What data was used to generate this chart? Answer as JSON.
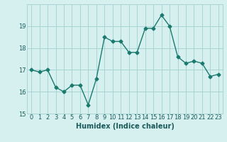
{
  "xlabel": "Humidex (Indice chaleur)",
  "ylabel": "",
  "x": [
    0,
    1,
    2,
    3,
    4,
    5,
    6,
    7,
    8,
    9,
    10,
    11,
    12,
    13,
    14,
    15,
    16,
    17,
    18,
    19,
    20,
    21,
    22,
    23
  ],
  "y": [
    17.0,
    16.9,
    17.0,
    16.2,
    16.0,
    16.3,
    16.3,
    15.4,
    16.6,
    18.5,
    18.3,
    18.3,
    17.8,
    17.8,
    18.9,
    18.9,
    19.5,
    19.0,
    17.6,
    17.3,
    17.4,
    17.3,
    16.7,
    16.8
  ],
  "line_color": "#1a7a6e",
  "marker": "D",
  "marker_size": 2.5,
  "bg_color": "#d6f0f0",
  "grid_color": "#aad4d4",
  "ylim": [
    15,
    20
  ],
  "yticks": [
    15,
    16,
    17,
    18,
    19
  ],
  "xticks": [
    0,
    1,
    2,
    3,
    4,
    5,
    6,
    7,
    8,
    9,
    10,
    11,
    12,
    13,
    14,
    15,
    16,
    17,
    18,
    19,
    20,
    21,
    22,
    23
  ],
  "xlabel_fontsize": 7,
  "tick_fontsize": 6,
  "line_width": 1.0
}
